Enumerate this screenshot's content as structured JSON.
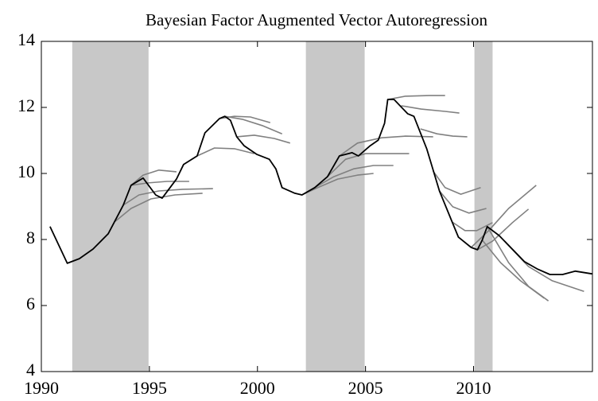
{
  "chart_data": {
    "type": "line",
    "title": "Bayesian Factor Augmented Vector Autoregression",
    "xlim": [
      1990,
      2015.5
    ],
    "xticks": [
      1990,
      1995,
      2000,
      2005,
      2010
    ],
    "ylim": [
      4,
      14
    ],
    "yticks": [
      4,
      6,
      8,
      10,
      12,
      14
    ],
    "grid": false,
    "shade_color": "#c8c8c8",
    "shaded_regions": [
      [
        1991.43,
        1994.96
      ],
      [
        2002.24,
        2004.96
      ],
      [
        2010.04,
        2010.88
      ]
    ],
    "series": [
      {
        "color": "#000000",
        "x": [
          1990.4,
          1991.2,
          1991.76,
          1992.39,
          1993.09,
          1993.79,
          1994.15,
          1994.71,
          1995.29,
          1995.59,
          1996.25,
          1996.58,
          1997.21,
          1997.57,
          1998.24,
          1998.49,
          1998.75,
          1999.04,
          1999.38,
          1999.96,
          2000.55,
          2000.85,
          2001.14,
          2001.73,
          2002.06,
          2002.65,
          2003.24,
          2003.79,
          2004.38,
          2004.67,
          2005.22,
          2005.59,
          2005.88,
          2006.03,
          2006.32,
          2006.95,
          2007.24,
          2007.83,
          2008.42,
          2009.01,
          2009.3,
          2009.89,
          2010.18,
          2010.4,
          2010.63,
          2011.18,
          2011.76,
          2012.35,
          2012.94,
          2013.53,
          2014.12,
          2014.71,
          2015.48
        ],
        "values": [
          8.39,
          7.28,
          7.42,
          7.71,
          8.17,
          9.04,
          9.64,
          9.86,
          9.35,
          9.25,
          9.83,
          10.27,
          10.53,
          11.23,
          11.66,
          11.73,
          11.61,
          11.11,
          10.84,
          10.58,
          10.43,
          10.14,
          9.57,
          9.4,
          9.35,
          9.57,
          9.9,
          10.53,
          10.63,
          10.53,
          10.84,
          11.01,
          11.52,
          12.24,
          12.24,
          11.81,
          11.73,
          10.75,
          9.47,
          8.53,
          8.07,
          7.76,
          7.69,
          7.98,
          8.39,
          8.12,
          7.73,
          7.33,
          7.11,
          6.94,
          6.94,
          7.04,
          6.96
        ]
      },
      {
        "color": "#808080",
        "x": [
          1994.15,
          1994.71,
          1995.44,
          1996.25
        ],
        "values": [
          9.64,
          9.95,
          10.1,
          10.05
        ]
      },
      {
        "color": "#808080",
        "x": [
          1994.15,
          1994.89,
          1995.81,
          1996.84
        ],
        "values": [
          9.64,
          9.71,
          9.76,
          9.76
        ]
      },
      {
        "color": "#808080",
        "x": [
          1993.79,
          1994.52,
          1995.44,
          1996.54,
          1997.94
        ],
        "values": [
          9.04,
          9.35,
          9.47,
          9.52,
          9.54
        ]
      },
      {
        "color": "#808080",
        "x": [
          1993.42,
          1994.15,
          1995.07,
          1996.18,
          1997.46
        ],
        "values": [
          8.55,
          8.94,
          9.23,
          9.35,
          9.4
        ]
      },
      {
        "color": "#808080",
        "x": [
          1997.21,
          1998.01,
          1998.93,
          1999.85
        ],
        "values": [
          10.53,
          10.77,
          10.75,
          10.6
        ]
      },
      {
        "color": "#808080",
        "x": [
          1998.24,
          1998.93,
          1999.67,
          2000.59
        ],
        "values": [
          11.66,
          11.73,
          11.71,
          11.54
        ]
      },
      {
        "color": "#808080",
        "x": [
          1998.49,
          1999.3,
          2000.22,
          2001.14
        ],
        "values": [
          11.73,
          11.64,
          11.45,
          11.2
        ]
      },
      {
        "color": "#808080",
        "x": [
          1999.04,
          1999.85,
          2000.77,
          2001.51
        ],
        "values": [
          11.11,
          11.16,
          11.06,
          10.92
        ]
      },
      {
        "color": "#808080",
        "x": [
          2002.06,
          2002.79,
          2003.71,
          2004.63,
          2005.37
        ],
        "values": [
          9.35,
          9.57,
          9.83,
          9.95,
          10.0
        ]
      },
      {
        "color": "#808080",
        "x": [
          2002.65,
          2003.53,
          2004.45,
          2005.37,
          2006.29
        ],
        "values": [
          9.57,
          9.9,
          10.14,
          10.24,
          10.24
        ]
      },
      {
        "color": "#808080",
        "x": [
          2003.24,
          2004.08,
          2005.0,
          2005.92,
          2007.02
        ],
        "values": [
          9.9,
          10.43,
          10.6,
          10.6,
          10.6
        ]
      },
      {
        "color": "#808080",
        "x": [
          2003.79,
          2004.63,
          2005.74,
          2006.84,
          2008.13
        ],
        "values": [
          10.53,
          10.92,
          11.08,
          11.13,
          11.11
        ]
      },
      {
        "color": "#808080",
        "x": [
          2006.03,
          2006.84,
          2007.94,
          2008.68
        ],
        "values": [
          12.24,
          12.34,
          12.36,
          12.36
        ]
      },
      {
        "color": "#808080",
        "x": [
          2006.65,
          2007.57,
          2008.68,
          2009.34
        ],
        "values": [
          12.05,
          11.95,
          11.88,
          11.83
        ]
      },
      {
        "color": "#808080",
        "x": [
          2007.54,
          2008.31,
          2009.04,
          2009.71
        ],
        "values": [
          11.35,
          11.2,
          11.13,
          11.11
        ]
      },
      {
        "color": "#808080",
        "x": [
          2008.13,
          2008.68,
          2009.41,
          2010.33
        ],
        "values": [
          10.07,
          9.57,
          9.37,
          9.57
        ]
      },
      {
        "color": "#808080",
        "x": [
          2008.42,
          2009.04,
          2009.78,
          2010.59
        ],
        "values": [
          9.47,
          8.99,
          8.8,
          8.94
        ]
      },
      {
        "color": "#808080",
        "x": [
          2009.01,
          2009.6,
          2010.15,
          2010.88
        ],
        "values": [
          8.53,
          8.27,
          8.27,
          8.51
        ]
      },
      {
        "color": "#808080",
        "x": [
          2009.89,
          2010.7,
          2011.62,
          2012.9
        ],
        "values": [
          7.76,
          8.27,
          8.94,
          9.64
        ]
      },
      {
        "color": "#808080",
        "x": [
          2010.18,
          2010.88,
          2011.8,
          2012.54
        ],
        "values": [
          7.69,
          7.95,
          8.51,
          8.92
        ]
      },
      {
        "color": "#808080",
        "x": [
          2010.4,
          2011.25,
          2012.17,
          2013.27
        ],
        "values": [
          7.98,
          7.3,
          6.75,
          6.22
        ]
      },
      {
        "color": "#808080",
        "x": [
          2010.63,
          2011.62,
          2012.54,
          2013.46
        ],
        "values": [
          8.39,
          7.3,
          6.58,
          6.14
        ]
      },
      {
        "color": "#808080",
        "x": [
          2011.18,
          2012.54,
          2013.64,
          2015.11
        ],
        "values": [
          8.12,
          7.18,
          6.75,
          6.43
        ]
      }
    ]
  }
}
